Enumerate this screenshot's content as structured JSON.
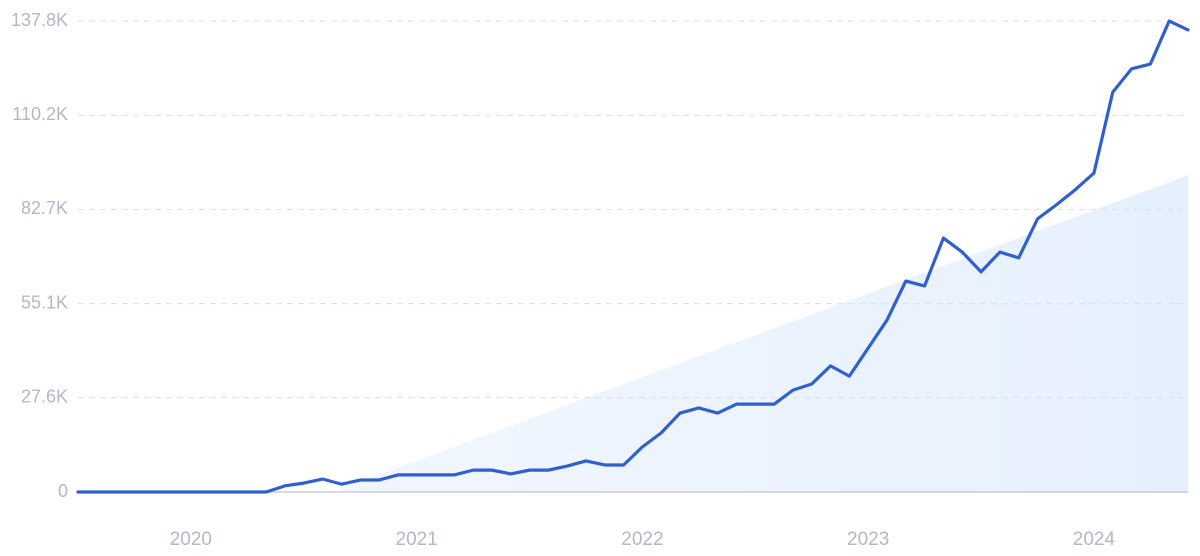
{
  "chart_data": {
    "type": "line",
    "categories": [
      null,
      null,
      null,
      null,
      null,
      null,
      "2020",
      null,
      null,
      null,
      null,
      null,
      null,
      null,
      null,
      null,
      null,
      null,
      "2021",
      null,
      null,
      null,
      null,
      null,
      null,
      null,
      null,
      null,
      null,
      null,
      "2022",
      null,
      null,
      null,
      null,
      null,
      null,
      null,
      null,
      null,
      null,
      null,
      "2023",
      null,
      null,
      null,
      null,
      null,
      null,
      null,
      null,
      null,
      null,
      null,
      "2024",
      null,
      null,
      null,
      null,
      null
    ],
    "series": [
      {
        "color": "#3060d0",
        "values": [
          0,
          0,
          0,
          0,
          0,
          0,
          0,
          0,
          0,
          0,
          0,
          1.8,
          2.6,
          3.8,
          2.3,
          3.5,
          3.5,
          5.0,
          5.0,
          5.0,
          5.0,
          6.4,
          6.4,
          5.3,
          6.4,
          6.4,
          7.6,
          9.1,
          7.9,
          7.9,
          13.2,
          17.3,
          23.1,
          24.6,
          23.1,
          25.7,
          25.7,
          25.7,
          29.8,
          31.6,
          36.9,
          33.9,
          42.1,
          50.3,
          61.7,
          60.3,
          74.3,
          70.2,
          64.4,
          70.2,
          68.5,
          79.9,
          84.0,
          88.4,
          93.3,
          117.0,
          123.8,
          125.2,
          137.8,
          135.2
        ]
      }
    ],
    "trend": {
      "color": "#e6f0fd",
      "values": [
        null,
        null,
        null,
        null,
        null,
        null,
        null,
        null,
        null,
        null,
        null,
        null,
        null,
        null,
        1.0,
        3.1,
        5.1,
        7.1,
        9.2,
        11.2,
        13.2,
        15.3,
        17.3,
        19.4,
        21.4,
        23.4,
        25.5,
        27.5,
        29.5,
        31.6,
        33.6,
        35.6,
        37.7,
        39.7,
        41.8,
        43.8,
        45.8,
        47.9,
        49.9,
        51.9,
        54.0,
        56.0,
        58.0,
        60.1,
        62.1,
        64.2,
        66.2,
        68.2,
        70.3,
        72.3,
        74.3,
        76.4,
        78.4,
        80.4,
        82.5,
        84.5,
        86.5,
        88.6,
        90.6,
        92.7
      ]
    },
    "ylim": [
      0,
      137.8
    ],
    "yticks": [
      0,
      {
        "value": 27.6,
        "label": "27.6K"
      },
      {
        "value": 55.1,
        "label": "55.1K"
      },
      {
        "value": 82.7,
        "label": "82.7K"
      },
      {
        "value": 110.2,
        "label": "110.2K"
      },
      {
        "value": 137.8,
        "label": "137.8K"
      }
    ],
    "grid": true
  }
}
